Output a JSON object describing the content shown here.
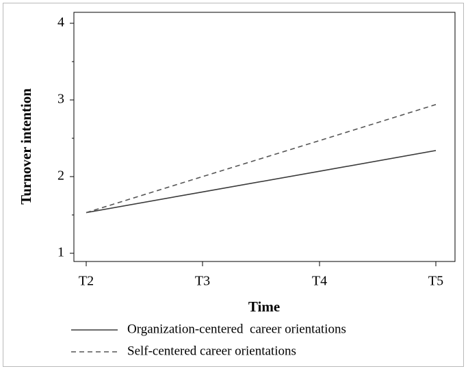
{
  "chart_data": {
    "type": "line",
    "title": "",
    "xlabel": "Time",
    "ylabel": "Turnover intention",
    "categories": [
      "T2",
      "T3",
      "T4",
      "T5"
    ],
    "ylim": [
      1,
      4
    ],
    "yticks": [
      "1",
      "2",
      "3",
      "4"
    ],
    "grid": false,
    "legend_position": "bottom-left",
    "series": [
      {
        "name": "Organization-centered  career orientations",
        "line_style": "solid",
        "color": "#3a3a3a",
        "values": [
          1.53,
          1.8,
          2.07,
          2.34
        ]
      },
      {
        "name": "Self-centered career orientations",
        "line_style": "dashed",
        "color": "#555555",
        "values": [
          1.53,
          2.0,
          2.47,
          2.94
        ]
      }
    ]
  }
}
